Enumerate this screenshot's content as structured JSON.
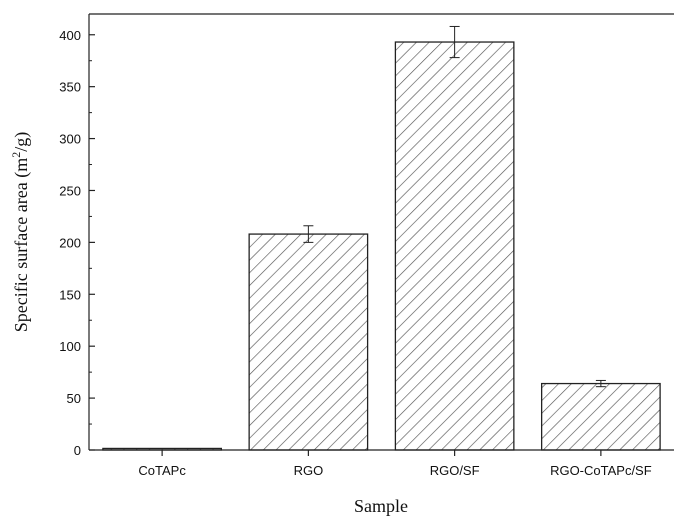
{
  "chart_data": {
    "type": "bar",
    "title": "",
    "xlabel": "Sample",
    "ylabel": {
      "prefix": "Specific surface area (m",
      "superscript": "2",
      "suffix": "/g)"
    },
    "categories": [
      "CoTAPc",
      "RGO",
      "RGO/SF",
      "RGO-CoTAPc/SF"
    ],
    "values": [
      1.5,
      208,
      393,
      64
    ],
    "errors": [
      0,
      8,
      15,
      3
    ],
    "ylim": [
      0,
      420
    ],
    "yticks": [
      0,
      50,
      100,
      150,
      200,
      250,
      300,
      350,
      400
    ],
    "ytick_labels": [
      "0",
      "50",
      "100",
      "150",
      "200",
      "250",
      "300",
      "350",
      "400"
    ],
    "grid": false,
    "bar_fill": "hatched",
    "colors": {
      "bar_edge": "#222222",
      "hatch": "#555555",
      "axis": "#222222",
      "background": "#ffffff"
    }
  }
}
